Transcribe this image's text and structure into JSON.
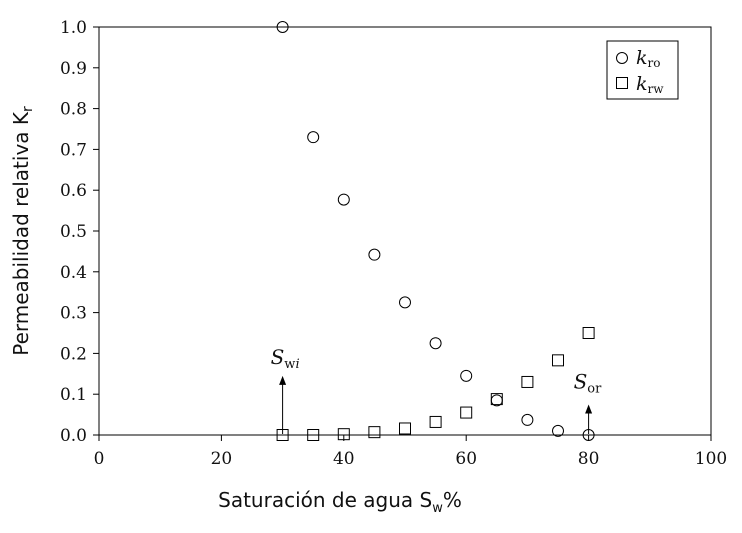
{
  "chart_data": {
    "type": "scatter",
    "xlabel": "Saturación de agua S",
    "xlabel_sub": "w",
    "xlabel_suffix": "%",
    "ylabel": "Permeabilidad relativa K",
    "ylabel_sub": "r",
    "xlim": [
      0,
      100
    ],
    "ylim": [
      0,
      1.0
    ],
    "x_ticks": [
      "0",
      "20",
      "40",
      "60",
      "80",
      "100"
    ],
    "y_ticks": [
      "0.0",
      "0.1",
      "0.2",
      "0.3",
      "0.4",
      "0.5",
      "0.6",
      "0.7",
      "0.8",
      "0.9",
      "1.0"
    ],
    "grid": false,
    "legend_position": "top-right",
    "series": [
      {
        "name": "k",
        "name_sub": "ro",
        "marker": "circle",
        "x": [
          30,
          35,
          40,
          45,
          50,
          55,
          60,
          65,
          70,
          75,
          80
        ],
        "y": [
          1.0,
          0.73,
          0.577,
          0.442,
          0.325,
          0.225,
          0.145,
          0.085,
          0.037,
          0.01,
          0.0
        ]
      },
      {
        "name": "k",
        "name_sub": "rw",
        "marker": "square",
        "x": [
          30,
          35,
          40,
          45,
          50,
          55,
          60,
          65,
          70,
          75,
          80
        ],
        "y": [
          0.0,
          0.0,
          0.002,
          0.007,
          0.016,
          0.032,
          0.055,
          0.088,
          0.13,
          0.183,
          0.25
        ]
      }
    ],
    "annotations": [
      {
        "text": "S",
        "sub": "wi",
        "sub_italic": "i",
        "x": 30,
        "arrow_from_y": 0.14,
        "arrow_to_y": 0.0
      },
      {
        "text": "S",
        "sub": "or",
        "x": 80,
        "arrow_from_y": 0.07,
        "arrow_to_y": 0.0
      }
    ]
  }
}
